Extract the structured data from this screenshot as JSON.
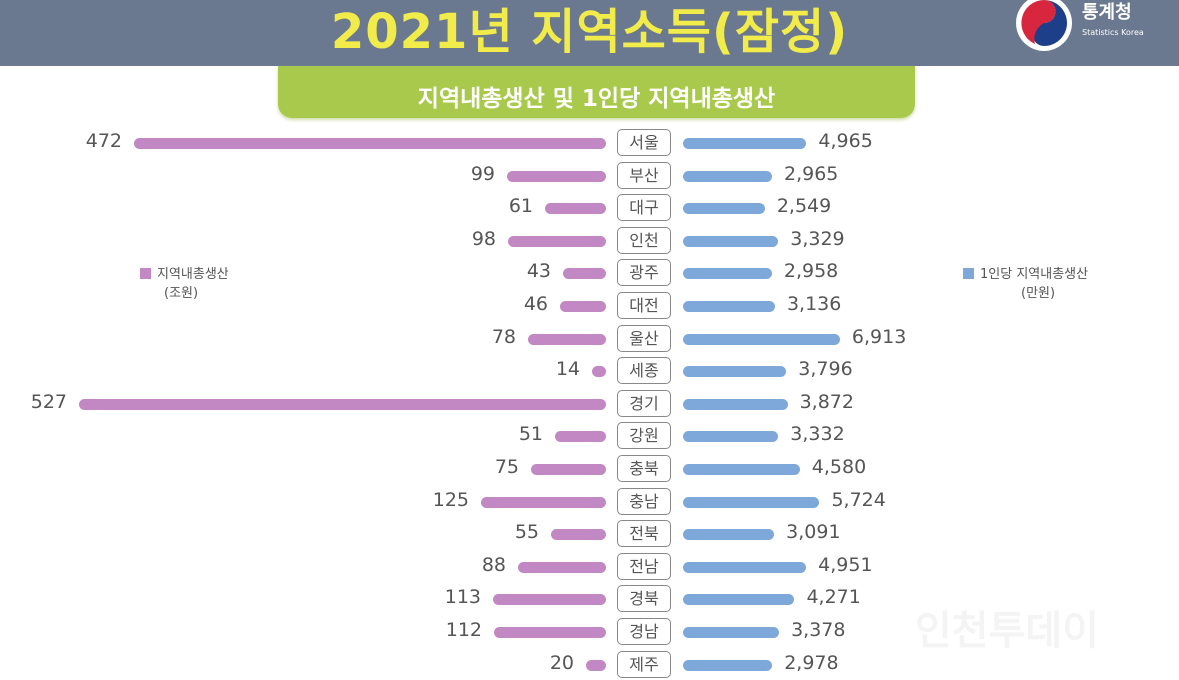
{
  "header": {
    "title": "2021년 지역소득(잠정)",
    "logo_name": "통계청",
    "logo_sub": "Statistics Korea"
  },
  "watermark": "인천투데이",
  "chart_data": {
    "type": "bar",
    "title": "지역내총생산 및 1인당 지역내총생산",
    "categories": [
      "서울",
      "부산",
      "대구",
      "인천",
      "광주",
      "대전",
      "울산",
      "세종",
      "경기",
      "강원",
      "충북",
      "충남",
      "전북",
      "전남",
      "경북",
      "경남",
      "제주"
    ],
    "series": [
      {
        "name": "지역내총생산",
        "unit": "(조원)",
        "color": "#c188c3",
        "side": "left",
        "values": [
          472,
          99,
          61,
          98,
          43,
          46,
          78,
          14,
          527,
          51,
          75,
          125,
          55,
          88,
          113,
          112,
          20
        ],
        "labels": [
          "472",
          "99",
          "61",
          "98",
          "43",
          "46",
          "78",
          "14",
          "527",
          "51",
          "75",
          "125",
          "55",
          "88",
          "113",
          "112",
          "20"
        ]
      },
      {
        "name": "1인당 지역내총생산",
        "unit": "(만원)",
        "color": "#7ea8da",
        "side": "right",
        "values": [
          4965,
          2965,
          2549,
          3329,
          2958,
          3136,
          6913,
          3796,
          3872,
          3332,
          4580,
          5724,
          3091,
          4951,
          4271,
          3378,
          2978
        ],
        "labels": [
          "4,965",
          "2,965",
          "2,549",
          "3,329",
          "2,958",
          "3,136",
          "6,913",
          "3,796",
          "3,872",
          "3,332",
          "4,580",
          "5,724",
          "3,091",
          "4,951",
          "4,271",
          "3,378",
          "2,978"
        ]
      }
    ],
    "legend": {
      "left": "left-middle",
      "right": "right-middle"
    },
    "grid": false
  }
}
